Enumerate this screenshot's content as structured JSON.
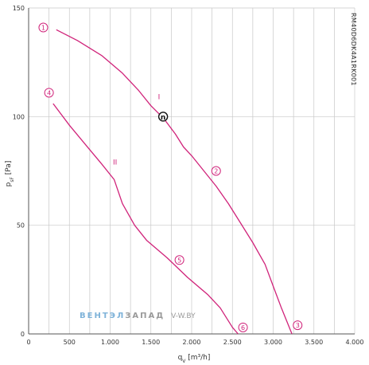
{
  "chart_data": {
    "type": "line",
    "xlabel_main": "q",
    "xlabel_sub": "V",
    "xlabel_unit": " [m³/h]",
    "ylabel_main": "p",
    "ylabel_sub": "sF",
    "ylabel_unit": " [Pa]",
    "xlim": [
      0,
      4000
    ],
    "ylim": [
      0,
      150
    ],
    "x_ticks": [
      0,
      500,
      1000,
      1500,
      2000,
      2500,
      3000,
      3500,
      4000
    ],
    "x_tick_labels": [
      "0",
      "500",
      "1.000",
      "1.500",
      "2.000",
      "2.500",
      "3.000",
      "3.500",
      "4.000"
    ],
    "y_ticks": [
      0,
      50,
      100,
      150
    ],
    "y_tick_labels": [
      "0",
      "50",
      "100",
      "150"
    ],
    "x_grid_step": 250,
    "grid": true,
    "series": [
      {
        "name": "I",
        "color": "#d0237a",
        "points": [
          [
            340,
            140
          ],
          [
            600,
            135
          ],
          [
            900,
            128
          ],
          [
            1150,
            120
          ],
          [
            1350,
            112
          ],
          [
            1500,
            105
          ],
          [
            1660,
            99
          ],
          [
            1800,
            92
          ],
          [
            1900,
            86
          ],
          [
            2000,
            82
          ],
          [
            2150,
            75
          ],
          [
            2300,
            68
          ],
          [
            2450,
            60
          ],
          [
            2600,
            51
          ],
          [
            2750,
            42
          ],
          [
            2900,
            32
          ],
          [
            3000,
            22
          ],
          [
            3100,
            12
          ],
          [
            3230,
            0
          ]
        ]
      },
      {
        "name": "II",
        "color": "#d0237a",
        "points": [
          [
            300,
            106
          ],
          [
            500,
            96
          ],
          [
            700,
            87
          ],
          [
            900,
            78
          ],
          [
            1050,
            71
          ],
          [
            1150,
            60
          ],
          [
            1300,
            50
          ],
          [
            1450,
            43
          ],
          [
            1700,
            35
          ],
          [
            1950,
            26
          ],
          [
            2200,
            18
          ],
          [
            2350,
            12
          ],
          [
            2500,
            3
          ],
          [
            2570,
            0
          ]
        ]
      }
    ],
    "markers": [
      {
        "label": "1",
        "x": 180,
        "y": 141
      },
      {
        "label": "2",
        "x": 2300,
        "y": 75
      },
      {
        "label": "3",
        "x": 3300,
        "y": 4
      },
      {
        "label": "4",
        "x": 250,
        "y": 111
      },
      {
        "label": "5",
        "x": 1850,
        "y": 34
      },
      {
        "label": "6",
        "x": 2630,
        "y": 3
      }
    ],
    "curve_labels": [
      {
        "label": "I",
        "x": 1600,
        "y": 108
      },
      {
        "label": "II",
        "x": 1060,
        "y": 78
      }
    ],
    "operating_point": {
      "label": "n",
      "x": 1650,
      "y": 100
    },
    "model_code": "RM40D6DK4A1RK001",
    "watermark_left": "ВЕНТЭЛ",
    "watermark_mid": "ЗАПАД",
    "watermark_right": "V-W.BY",
    "colors": {
      "curve": "#d0237a",
      "grid": "#c8c8c8",
      "watermark_blue": "#7fb3d9",
      "watermark_gray": "#9a9a9a"
    }
  }
}
